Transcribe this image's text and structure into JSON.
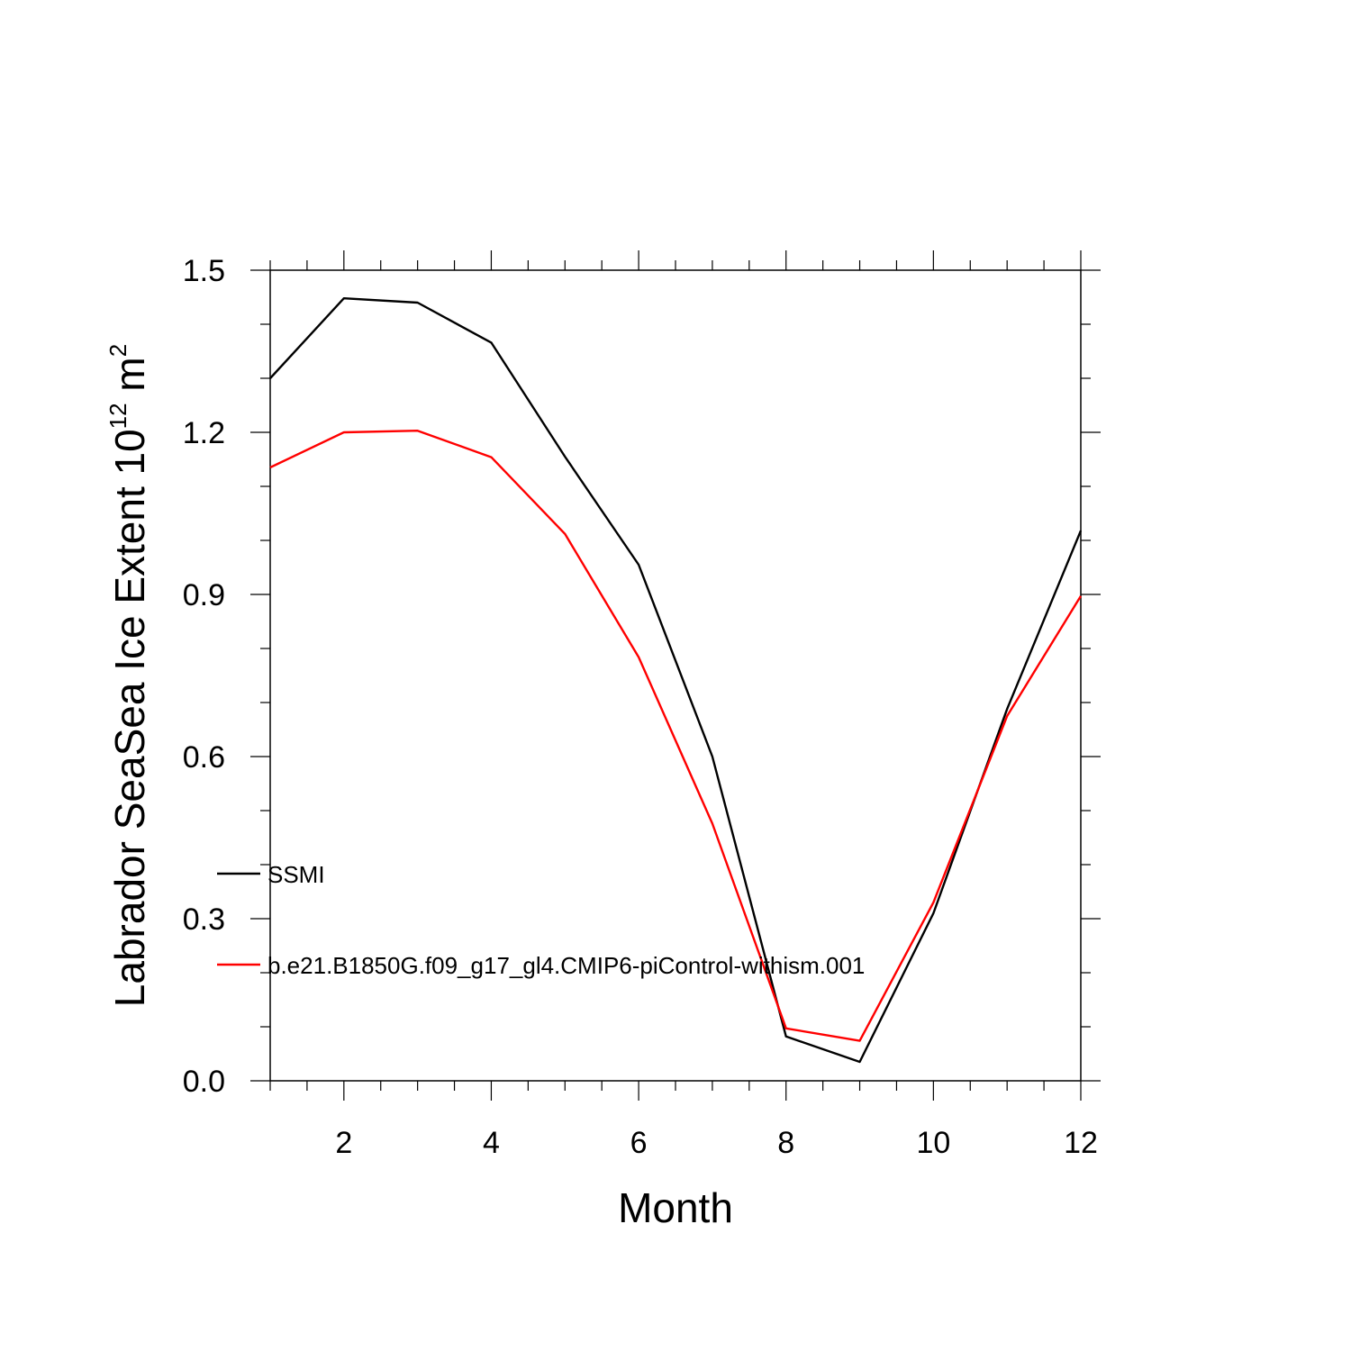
{
  "chart_data": {
    "type": "line",
    "xlabel": "Month",
    "ylabel_main": "Labrador SeaSea Ice Extent 10",
    "ylabel_superscript1": "12",
    "ylabel_unit": " m",
    "ylabel_superscript2": "2",
    "xlim": [
      1,
      12
    ],
    "ylim": [
      0,
      1.5
    ],
    "x_ticks": [
      2,
      4,
      6,
      8,
      10,
      12
    ],
    "x_tick_labels": [
      "2",
      "4",
      "6",
      "8",
      "10",
      "12"
    ],
    "y_ticks": [
      0,
      0.3,
      0.6,
      0.9,
      1.2,
      1.5
    ],
    "y_tick_labels": [
      "0.0",
      "0.3",
      "0.6",
      "0.9",
      "1.2",
      "1.5"
    ],
    "grid": false,
    "legend_position": "lower-left inside",
    "x": [
      1,
      2,
      3,
      4,
      5,
      6,
      7,
      8,
      9,
      10,
      11,
      12
    ],
    "series": [
      {
        "name": "SSMI",
        "color": "#000000",
        "values": [
          1.3,
          1.448,
          1.44,
          1.366,
          1.155,
          0.955,
          0.6,
          0.082,
          0.035,
          0.31,
          0.688,
          1.018
        ]
      },
      {
        "name": "b.e21.B1850G.f09_g17_gl4.CMIP6-piControl-withism.001",
        "color": "#ff0000",
        "values": [
          1.135,
          1.2,
          1.203,
          1.154,
          1.012,
          0.784,
          0.476,
          0.097,
          0.074,
          0.33,
          0.675,
          0.897
        ]
      }
    ]
  }
}
